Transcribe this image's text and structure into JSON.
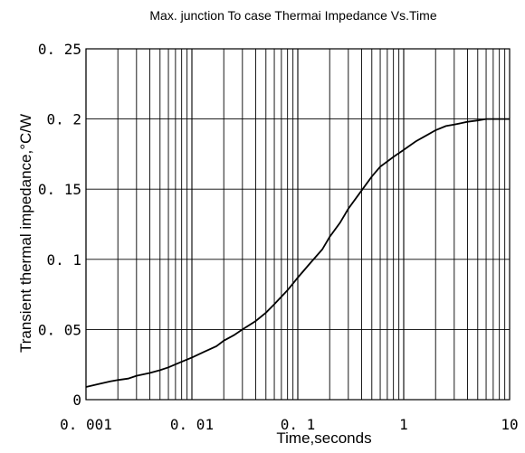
{
  "chart_data": {
    "type": "line",
    "title": "Max. junction To case Thermai Impedance Vs.Time",
    "xlabel": "Time,seconds",
    "ylabel": "Transient thermal impedance,°C/W",
    "x_scale": "log",
    "xlim": [
      0.001,
      10
    ],
    "ylim": [
      0,
      0.25
    ],
    "grid": true,
    "x_tick_labels": [
      "0. 001",
      "0. 01",
      "0. 1",
      "1",
      "10"
    ],
    "y_tick_labels": [
      "0",
      "0. 05",
      "0. 1",
      "0. 15",
      "0. 2",
      "0. 25"
    ],
    "series": [
      {
        "x": [
          0.001,
          0.0013,
          0.0017,
          0.002,
          0.0025,
          0.003,
          0.004,
          0.005,
          0.006,
          0.008,
          0.01,
          0.013,
          0.017,
          0.02,
          0.025,
          0.03,
          0.04,
          0.05,
          0.06,
          0.08,
          0.1,
          0.13,
          0.17,
          0.2,
          0.25,
          0.3,
          0.4,
          0.5,
          0.6,
          0.8,
          1,
          1.3,
          1.7,
          2,
          2.5,
          3,
          4,
          5,
          6,
          8,
          10
        ],
        "y": [
          0.009,
          0.011,
          0.013,
          0.014,
          0.015,
          0.017,
          0.019,
          0.021,
          0.023,
          0.027,
          0.03,
          0.034,
          0.038,
          0.042,
          0.046,
          0.05,
          0.056,
          0.062,
          0.068,
          0.078,
          0.087,
          0.097,
          0.107,
          0.116,
          0.126,
          0.136,
          0.149,
          0.159,
          0.166,
          0.173,
          0.178,
          0.184,
          0.189,
          0.192,
          0.195,
          0.196,
          0.198,
          0.199,
          0.2,
          0.2,
          0.2
        ]
      }
    ]
  }
}
